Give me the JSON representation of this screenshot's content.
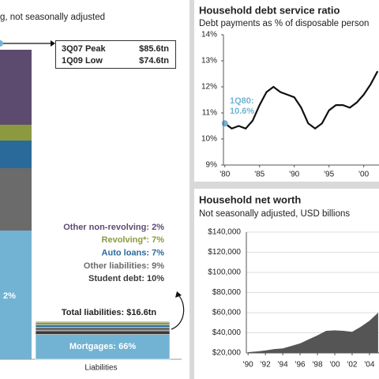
{
  "chart_data": [
    {
      "type": "stacked-bar",
      "subtitle": "g, not seasonally adjusted",
      "categories": [
        "Liabilities"
      ],
      "annotations": [
        "3Q07 Peak",
        "$85.6tn",
        "1Q09 Low",
        "$74.6tn",
        "2%",
        "Total liabilities: $16.6tn"
      ],
      "series": [
        {
          "name": "Other non-revolving",
          "color": "#5d4b6f",
          "values": [
            2
          ],
          "value_labels": [
            "Other non-revolving: 2%"
          ]
        },
        {
          "name": "Revolving*",
          "color": "#8c9a3f",
          "values": [
            7
          ],
          "value_labels": [
            "Revolving*: 7%"
          ]
        },
        {
          "name": "Auto loans",
          "color": "#2a6a9a",
          "values": [
            7
          ],
          "value_labels": [
            "Auto loans: 7%"
          ]
        },
        {
          "name": "Other liabilities",
          "color": "#6b6b6b",
          "values": [
            9
          ],
          "value_labels": [
            "Other liabilities: 9%"
          ]
        },
        {
          "name": "Student debt",
          "color": "#3a3a3a",
          "values": [
            10
          ],
          "value_labels": [
            "Student debt: 10%"
          ]
        },
        {
          "name": "Mortgages",
          "color": "#72b3d3",
          "values": [
            66
          ],
          "value_labels": [
            "Mortgages: 66%"
          ]
        }
      ]
    },
    {
      "type": "line",
      "title": "Household debt service ratio",
      "subtitle": "Debt payments as % of disposable person",
      "annotations": [
        "1Q80:",
        "10.6%"
      ],
      "color": "#111111",
      "marker_color": "#72b3d3",
      "x": [
        1980,
        1981,
        1982,
        1983,
        1984,
        1985,
        1986,
        1987,
        1988,
        1989,
        1990,
        1991,
        1992,
        1993,
        1994,
        1995,
        1996,
        1997,
        1998,
        1999,
        2000,
        2001,
        2002
      ],
      "values": [
        10.6,
        10.4,
        10.5,
        10.4,
        10.7,
        11.3,
        11.8,
        12.0,
        11.8,
        11.7,
        11.6,
        11.2,
        10.6,
        10.4,
        10.6,
        11.1,
        11.3,
        11.3,
        11.2,
        11.4,
        11.7,
        12.1,
        12.6
      ],
      "xlim": [
        1979.8,
        2002.2
      ],
      "ylim": [
        9,
        14
      ],
      "xticks": [
        {
          "value": 1980,
          "label": "'80"
        },
        {
          "value": 1985,
          "label": "'85"
        },
        {
          "value": 1990,
          "label": "'90"
        },
        {
          "value": 1995,
          "label": "'95"
        },
        {
          "value": 2000,
          "label": "'00"
        }
      ],
      "yticks": [
        {
          "value": 9,
          "label": "9%"
        },
        {
          "value": 10,
          "label": "10%"
        },
        {
          "value": 11,
          "label": "11%"
        },
        {
          "value": 12,
          "label": "12%"
        },
        {
          "value": 13,
          "label": "13%"
        },
        {
          "value": 14,
          "label": "14%"
        }
      ]
    },
    {
      "type": "area",
      "title": "Household net worth",
      "subtitle": "Not seasonally adjusted, USD billions",
      "color": "#555555",
      "grid": true,
      "x": [
        1990,
        1991,
        1992,
        1993,
        1994,
        1995,
        1996,
        1997,
        1998,
        1999,
        2000,
        2001,
        2002,
        2003,
        2004,
        2005
      ],
      "values": [
        20800,
        21500,
        22500,
        23800,
        24500,
        27000,
        29500,
        33500,
        37500,
        42000,
        42500,
        42000,
        41000,
        46000,
        52000,
        60000
      ],
      "xlim": [
        1989.8,
        2005.1
      ],
      "ylim": [
        20000,
        140000
      ],
      "xticks": [
        {
          "value": 1990,
          "label": "'90"
        },
        {
          "value": 1992,
          "label": "'92"
        },
        {
          "value": 1994,
          "label": "'94"
        },
        {
          "value": 1996,
          "label": "'96"
        },
        {
          "value": 1998,
          "label": "'98"
        },
        {
          "value": 2000,
          "label": "'00"
        },
        {
          "value": 2002,
          "label": "'02"
        },
        {
          "value": 2004,
          "label": "'04"
        }
      ],
      "yticks": [
        {
          "value": 20000,
          "label": "$20,000"
        },
        {
          "value": 40000,
          "label": "$40,000"
        },
        {
          "value": 60000,
          "label": "$60,000"
        },
        {
          "value": 80000,
          "label": "$80,000"
        },
        {
          "value": 100000,
          "label": "$100,000"
        },
        {
          "value": 120000,
          "label": "$120,000"
        },
        {
          "value": 140000,
          "label": "$140,000"
        }
      ]
    }
  ]
}
